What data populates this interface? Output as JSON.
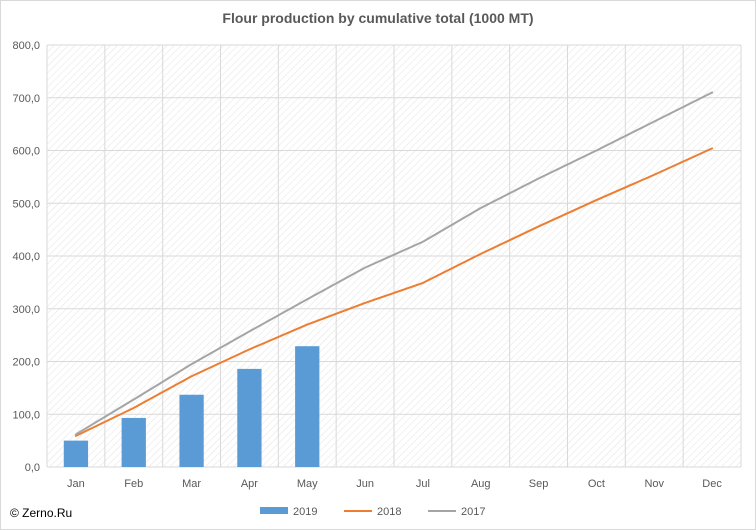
{
  "chart_data": {
    "type": "bar",
    "title": "Flour production by cumulative total (1000 MT)",
    "categories": [
      "Jan",
      "Feb",
      "Mar",
      "Apr",
      "May",
      "Jun",
      "Jul",
      "Aug",
      "Sep",
      "Oct",
      "Nov",
      "Dec"
    ],
    "ylim": [
      0,
      800
    ],
    "yticks": [
      "0,0",
      "100,0",
      "200,0",
      "300,0",
      "400,0",
      "500,0",
      "600,0",
      "700,0",
      "800,0"
    ],
    "grid": true,
    "legend_position": "bottom",
    "series": [
      {
        "name": "2019",
        "type": "bar",
        "color": "#5b9bd5",
        "values": [
          50,
          93,
          137,
          186,
          229,
          null,
          null,
          null,
          null,
          null,
          null,
          null
        ]
      },
      {
        "name": "2018",
        "type": "line",
        "color": "#ed7d31",
        "values": [
          59,
          112,
          172,
          223,
          270,
          311,
          349,
          404,
          456,
          506,
          554,
          604
        ]
      },
      {
        "name": "2017",
        "type": "line",
        "color": "#a5a5a5",
        "values": [
          62,
          128,
          195,
          257,
          318,
          378,
          427,
          491,
          547,
          600,
          655,
          710
        ]
      }
    ]
  },
  "footer": {
    "copyright": "© Zerno.Ru"
  }
}
